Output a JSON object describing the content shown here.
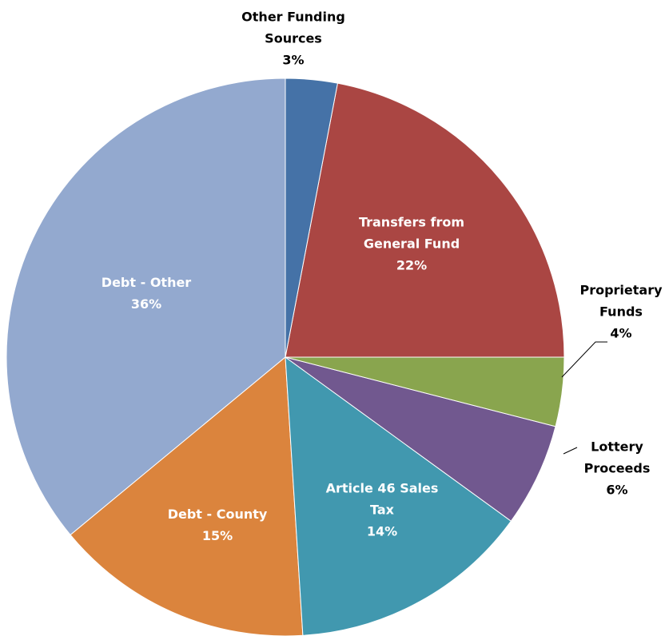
{
  "chart_data": {
    "type": "pie",
    "categories": [
      "Other Funding Sources",
      "Transfers from General Fund",
      "Proprietary Funds",
      "Lottery Proceeds",
      "Article 46 Sales Tax",
      "Debt - County",
      "Debt - Other"
    ],
    "values": [
      3,
      22,
      4,
      6,
      14,
      15,
      36
    ],
    "value_labels": [
      "3%",
      "22%",
      "4%",
      "6%",
      "14%",
      "15%",
      "36%"
    ],
    "colors": [
      "#4572a7",
      "#aa4643",
      "#89a54e",
      "#71588f",
      "#4198af",
      "#db843d",
      "#93a9cf"
    ]
  }
}
